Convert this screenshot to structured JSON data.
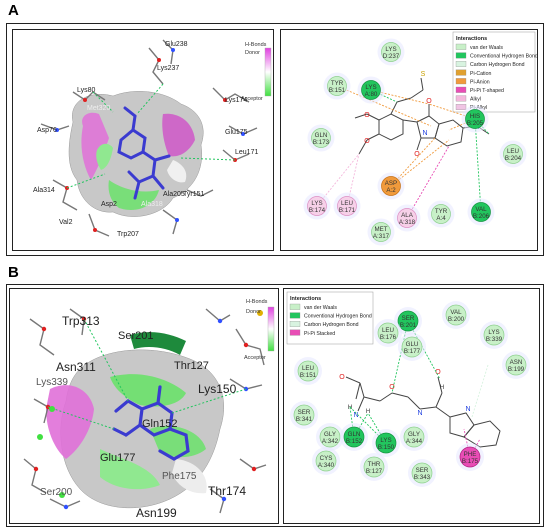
{
  "panels": [
    {
      "letter": "A",
      "hbond_legend": {
        "title": "H-Bonds",
        "donor": "Donor",
        "acceptor": "Acceptor"
      },
      "surface_labels": [
        "Glu238",
        "Lys237",
        "Lys80",
        "Met320",
        "Asp76",
        "Lys174",
        "Glu175",
        "Leu171",
        "Ala314",
        "Val2",
        "Asp2",
        "Trp207",
        "Ala318",
        "Ala205",
        "Tyr151"
      ],
      "interactions_legend": {
        "title": "Interactions",
        "items": [
          {
            "label": "van der Waals",
            "color": "#c8f0c8"
          },
          {
            "label": "Conventional Hydrogen Bond",
            "color": "#22c55e"
          },
          {
            "label": "Carbon Hydrogen Bond",
            "color": "#d8f3e0"
          },
          {
            "label": "Pi-Cation",
            "color": "#e0a030"
          },
          {
            "label": "Pi-Anion",
            "color": "#f09a3c"
          },
          {
            "label": "Pi-Pi T-shaped",
            "color": "#e84db5"
          },
          {
            "label": "Alkyl",
            "color": "#f4b8dc"
          },
          {
            "label": "Pi-Alkyl",
            "color": "#f0c4e4"
          }
        ]
      },
      "residues": [
        {
          "name": "LYS",
          "id": "D:237",
          "type": "vdw"
        },
        {
          "name": "TYR",
          "id": "B:151",
          "type": "vdw"
        },
        {
          "name": "LYS",
          "id": "A:80",
          "type": "hbond"
        },
        {
          "name": "GLN",
          "id": "B:173",
          "type": "vdw"
        },
        {
          "name": "HIS",
          "id": "B:205",
          "type": "hbond"
        },
        {
          "name": "LEU",
          "id": "B:204",
          "type": "vdw"
        },
        {
          "name": "ASP",
          "id": "A:2",
          "type": "anion"
        },
        {
          "name": "LYS",
          "id": "B:174",
          "type": "alkyl"
        },
        {
          "name": "LEU",
          "id": "B:171",
          "type": "alkyl"
        },
        {
          "name": "ALA",
          "id": "A:318",
          "type": "alkyl"
        },
        {
          "name": "TYR",
          "id": "A:4",
          "type": "vdw"
        },
        {
          "name": "VAL",
          "id": "B:206",
          "type": "hbond"
        },
        {
          "name": "MET",
          "id": "A:317",
          "type": "vdw"
        }
      ],
      "ligand_atoms": [
        "O",
        "O",
        "O",
        "O",
        "N",
        "N",
        "S"
      ]
    },
    {
      "letter": "B",
      "hbond_legend": {
        "title": "H-Bonds",
        "donor": "Donor",
        "acceptor": "Acceptor"
      },
      "surface_labels": [
        "Trp313",
        "Ser201",
        "Asn311",
        "Lys339",
        "Thr127",
        "Lys150",
        "Gln152",
        "Glu177",
        "Phe175",
        "Thr174",
        "Ser200",
        "Asn199"
      ],
      "interactions_legend": {
        "title": "Interactions",
        "items": [
          {
            "label": "van der Waals",
            "color": "#c8f0c8"
          },
          {
            "label": "Conventional Hydrogen Bond",
            "color": "#22c55e"
          },
          {
            "label": "Carbon Hydrogen Bond",
            "color": "#d8f3e0"
          },
          {
            "label": "Pi-Pi Stacked",
            "color": "#e84db5"
          }
        ]
      },
      "residues": [
        {
          "name": "SER",
          "id": "B:201",
          "type": "hbond"
        },
        {
          "name": "VAL",
          "id": "B:200",
          "type": "vdw"
        },
        {
          "name": "LEU",
          "id": "B:176",
          "type": "vdw"
        },
        {
          "name": "LYS",
          "id": "B:339",
          "type": "vdw"
        },
        {
          "name": "GLU",
          "id": "B:177",
          "type": "vdw"
        },
        {
          "name": "ASN",
          "id": "B:199",
          "type": "vdw"
        },
        {
          "name": "LEU",
          "id": "B:151",
          "type": "vdw"
        },
        {
          "name": "SER",
          "id": "B:341",
          "type": "vdw"
        },
        {
          "name": "GLY",
          "id": "A:342",
          "type": "vdw"
        },
        {
          "name": "GLN",
          "id": "B:152",
          "type": "hbond"
        },
        {
          "name": "LYS",
          "id": "B:150",
          "type": "hbond"
        },
        {
          "name": "GLY",
          "id": "A:344",
          "type": "vdw"
        },
        {
          "name": "PHE",
          "id": "B:175",
          "type": "pipi"
        },
        {
          "name": "CYS",
          "id": "A:340",
          "type": "vdw"
        },
        {
          "name": "THR",
          "id": "B:127",
          "type": "vdw"
        },
        {
          "name": "SER",
          "id": "B:343",
          "type": "vdw"
        }
      ],
      "ligand_atoms": [
        "O",
        "O",
        "O",
        "N",
        "N",
        "N",
        "H",
        "H",
        "H"
      ]
    }
  ],
  "colors": {
    "vdw": "#c8f0c8",
    "vdw_stroke": "#8cd08c",
    "hbond": "#22c55e",
    "hbond_stroke": "#12943f",
    "anion": "#f09a3c",
    "anion_stroke": "#c66f12",
    "alkyl": "#f6d0e8",
    "alkyl_stroke": "#dd8cc2",
    "pipi": "#e84db5",
    "pipi_stroke": "#b01e80",
    "ligand_blue": "#3b3bd0",
    "donor": "#e040e0",
    "acceptor": "#40e040"
  }
}
